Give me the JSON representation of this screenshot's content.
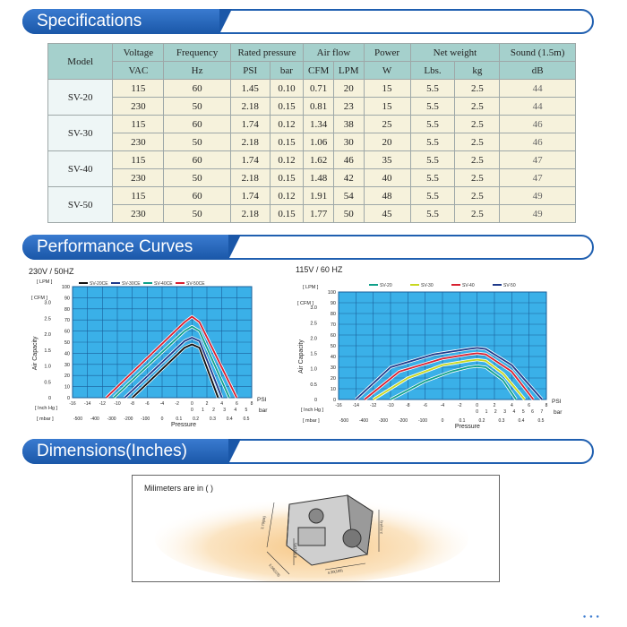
{
  "sections": {
    "specifications": "Specifications",
    "performance": "Performance Curves",
    "dimensions": "Dimensions(Inches)"
  },
  "table": {
    "headers": [
      "Model",
      "Voltage",
      "Frequency",
      "Rated pressure",
      "Air flow",
      "Power",
      "Net weight",
      "Sound (1.5m)"
    ],
    "units": [
      "VAC",
      "Hz",
      "PSI",
      "bar",
      "CFM",
      "LPM",
      "W",
      "Lbs.",
      "kg",
      "dB"
    ],
    "models": [
      {
        "name": "SV-20",
        "rows": [
          [
            "115",
            "60",
            "1.45",
            "0.10",
            "0.71",
            "20",
            "15",
            "5.5",
            "2.5",
            "44"
          ],
          [
            "230",
            "50",
            "2.18",
            "0.15",
            "0.81",
            "23",
            "15",
            "5.5",
            "2.5",
            "44"
          ]
        ]
      },
      {
        "name": "SV-30",
        "rows": [
          [
            "115",
            "60",
            "1.74",
            "0.12",
            "1.34",
            "38",
            "25",
            "5.5",
            "2.5",
            "46"
          ],
          [
            "230",
            "50",
            "2.18",
            "0.15",
            "1.06",
            "30",
            "20",
            "5.5",
            "2.5",
            "46"
          ]
        ]
      },
      {
        "name": "SV-40",
        "rows": [
          [
            "115",
            "60",
            "1.74",
            "0.12",
            "1.62",
            "46",
            "35",
            "5.5",
            "2.5",
            "47"
          ],
          [
            "230",
            "50",
            "2.18",
            "0.15",
            "1.48",
            "42",
            "40",
            "5.5",
            "2.5",
            "47"
          ]
        ]
      },
      {
        "name": "SV-50",
        "rows": [
          [
            "115",
            "60",
            "1.74",
            "0.12",
            "1.91",
            "54",
            "48",
            "5.5",
            "2.5",
            "49"
          ],
          [
            "230",
            "50",
            "2.18",
            "0.15",
            "1.77",
            "50",
            "45",
            "5.5",
            "2.5",
            "49"
          ]
        ]
      }
    ]
  },
  "chart_data": [
    {
      "type": "line",
      "title": "230V / 50HZ",
      "xlabel": "Pressure",
      "ylabel": "Air Capacity",
      "left_units": [
        "[ LPM ]",
        "[ CFM ]"
      ],
      "lpm_ticks": [
        "100",
        "90",
        "80",
        "70",
        "60",
        "50",
        "40",
        "30",
        "20",
        "10",
        "0"
      ],
      "cfm_ticks": [
        "3.0",
        "2.5",
        "2.0",
        "1.5",
        "1.0",
        "0.5",
        "0"
      ],
      "inhg_label": "[ Inch Hg ]",
      "inhg_ticks": [
        "-16",
        "-14",
        "-12",
        "-10",
        "-8",
        "-6",
        "-4",
        "-2",
        "0",
        "2",
        "4",
        "6",
        "8"
      ],
      "psi_label": "PSI",
      "psi_ticks": [
        "0",
        "1",
        "2",
        "3",
        "4",
        "5"
      ],
      "mbar_label": "[ mbar ]",
      "mbar_ticks": [
        "-500",
        "-400",
        "-300",
        "-200",
        "-100",
        "0",
        "0.1",
        "0.2",
        "0.3",
        "0.4",
        "0.5"
      ],
      "bar_label": "bar",
      "xlim": [
        -16,
        8
      ],
      "ylim": [
        0,
        100
      ],
      "series": [
        {
          "name": "SV-20CE",
          "color": "#111111",
          "x": [
            -8,
            -1,
            0,
            1,
            3.5
          ],
          "y": [
            0,
            45,
            48,
            45,
            0
          ]
        },
        {
          "name": "SV-30CE",
          "color": "#1f3a8a",
          "x": [
            -9,
            -1,
            0,
            1,
            4
          ],
          "y": [
            0,
            51,
            54,
            51,
            0
          ]
        },
        {
          "name": "SV-40CE",
          "color": "#10a08a",
          "x": [
            -10.5,
            -1,
            0,
            1,
            5
          ],
          "y": [
            0,
            60,
            64,
            60,
            0
          ]
        },
        {
          "name": "SV-50CE",
          "color": "#d82030",
          "x": [
            -11.5,
            -1,
            0,
            1,
            6
          ],
          "y": [
            0,
            68,
            73,
            68,
            0
          ]
        }
      ]
    },
    {
      "type": "line",
      "title": "115V / 60 HZ",
      "xlabel": "Pressure",
      "ylabel": "Air Capacity",
      "left_units": [
        "[ LPM ]",
        "[ CFM ]"
      ],
      "lpm_ticks": [
        "100",
        "90",
        "80",
        "70",
        "60",
        "50",
        "40",
        "30",
        "20",
        "10",
        "0"
      ],
      "cfm_ticks": [
        "3.0",
        "2.5",
        "2.0",
        "1.5",
        "1.0",
        "0.5",
        "0"
      ],
      "inhg_label": "[ Inch Hg ]",
      "inhg_ticks": [
        "-16",
        "-14",
        "-12",
        "-10",
        "-8",
        "-6",
        "-4",
        "-2",
        "0",
        "2",
        "4",
        "6",
        "8"
      ],
      "psi_label": "PSI",
      "psi_ticks": [
        "0",
        "1",
        "2",
        "3",
        "4",
        "5",
        "6",
        "7"
      ],
      "mbar_label": "[ mbar ]",
      "mbar_ticks": [
        "-500",
        "-400",
        "-300",
        "-200",
        "-100",
        "0",
        "0.1",
        "0.2",
        "0.3",
        "0.4",
        "0.5"
      ],
      "bar_label": "bar",
      "xlim": [
        -16,
        8
      ],
      "ylim": [
        0,
        100
      ],
      "series": [
        {
          "name": "SV-20",
          "color": "#10a08a",
          "x": [
            -10,
            -6,
            -3,
            -1,
            0,
            1,
            3,
            4.5
          ],
          "y": [
            0,
            17,
            26,
            30,
            31,
            30,
            18,
            0
          ]
        },
        {
          "name": "SV-30",
          "color": "#c8d820",
          "x": [
            -12,
            -8,
            -4,
            -1,
            0,
            1,
            3,
            5.5
          ],
          "y": [
            0,
            20,
            32,
            36,
            37,
            36,
            24,
            0
          ]
        },
        {
          "name": "SV-40",
          "color": "#d82030",
          "x": [
            -13,
            -9,
            -4,
            -1,
            0,
            1,
            4,
            6.5
          ],
          "y": [
            0,
            26,
            38,
            42,
            43,
            42,
            26,
            0
          ]
        },
        {
          "name": "SV-50",
          "color": "#1f3a8a",
          "x": [
            -14,
            -10,
            -5,
            -1,
            0,
            1,
            4,
            7.5
          ],
          "y": [
            0,
            30,
            42,
            47,
            48,
            47,
            32,
            0
          ]
        }
      ]
    }
  ],
  "dimensions": {
    "note": "Milimeters are in (  )",
    "labels": [
      "3.70(94)",
      "5.08(129)",
      "4.30(109)",
      "2.52(64)",
      "4.56(116)"
    ]
  }
}
